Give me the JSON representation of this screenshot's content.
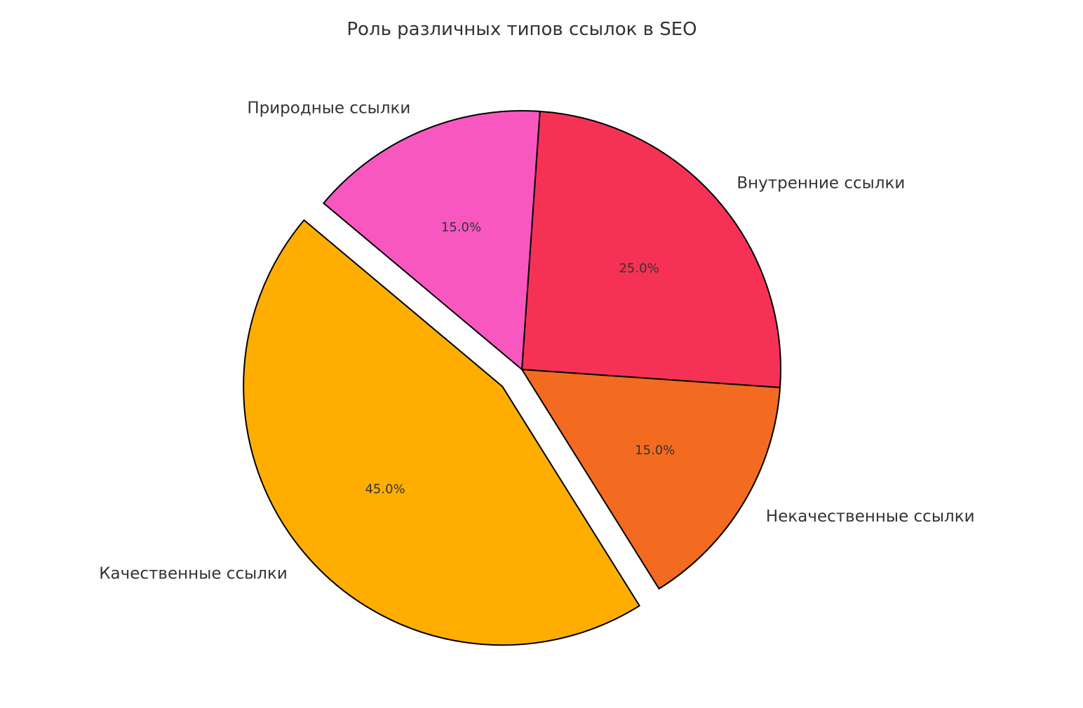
{
  "chart_data": {
    "type": "pie",
    "title": "Роль различных типов ссылок в SEO",
    "slices": [
      {
        "label": "Качественные ссылки",
        "value": 45,
        "pct_label": "45.0%",
        "color": "#FFAE00",
        "exploded": true
      },
      {
        "label": "Некачественные ссылки",
        "value": 15,
        "pct_label": "15.0%",
        "color": "#F26B21",
        "exploded": false
      },
      {
        "label": "Внутренние ссылки",
        "value": 25,
        "pct_label": "25.0%",
        "color": "#F53256",
        "exploded": false
      },
      {
        "label": "Природные ссылки",
        "value": 15,
        "pct_label": "15.0%",
        "color": "#F857C0",
        "exploded": false
      }
    ],
    "start_angle": 140,
    "direction": "counterclockwise",
    "edge_color": "#000000"
  }
}
